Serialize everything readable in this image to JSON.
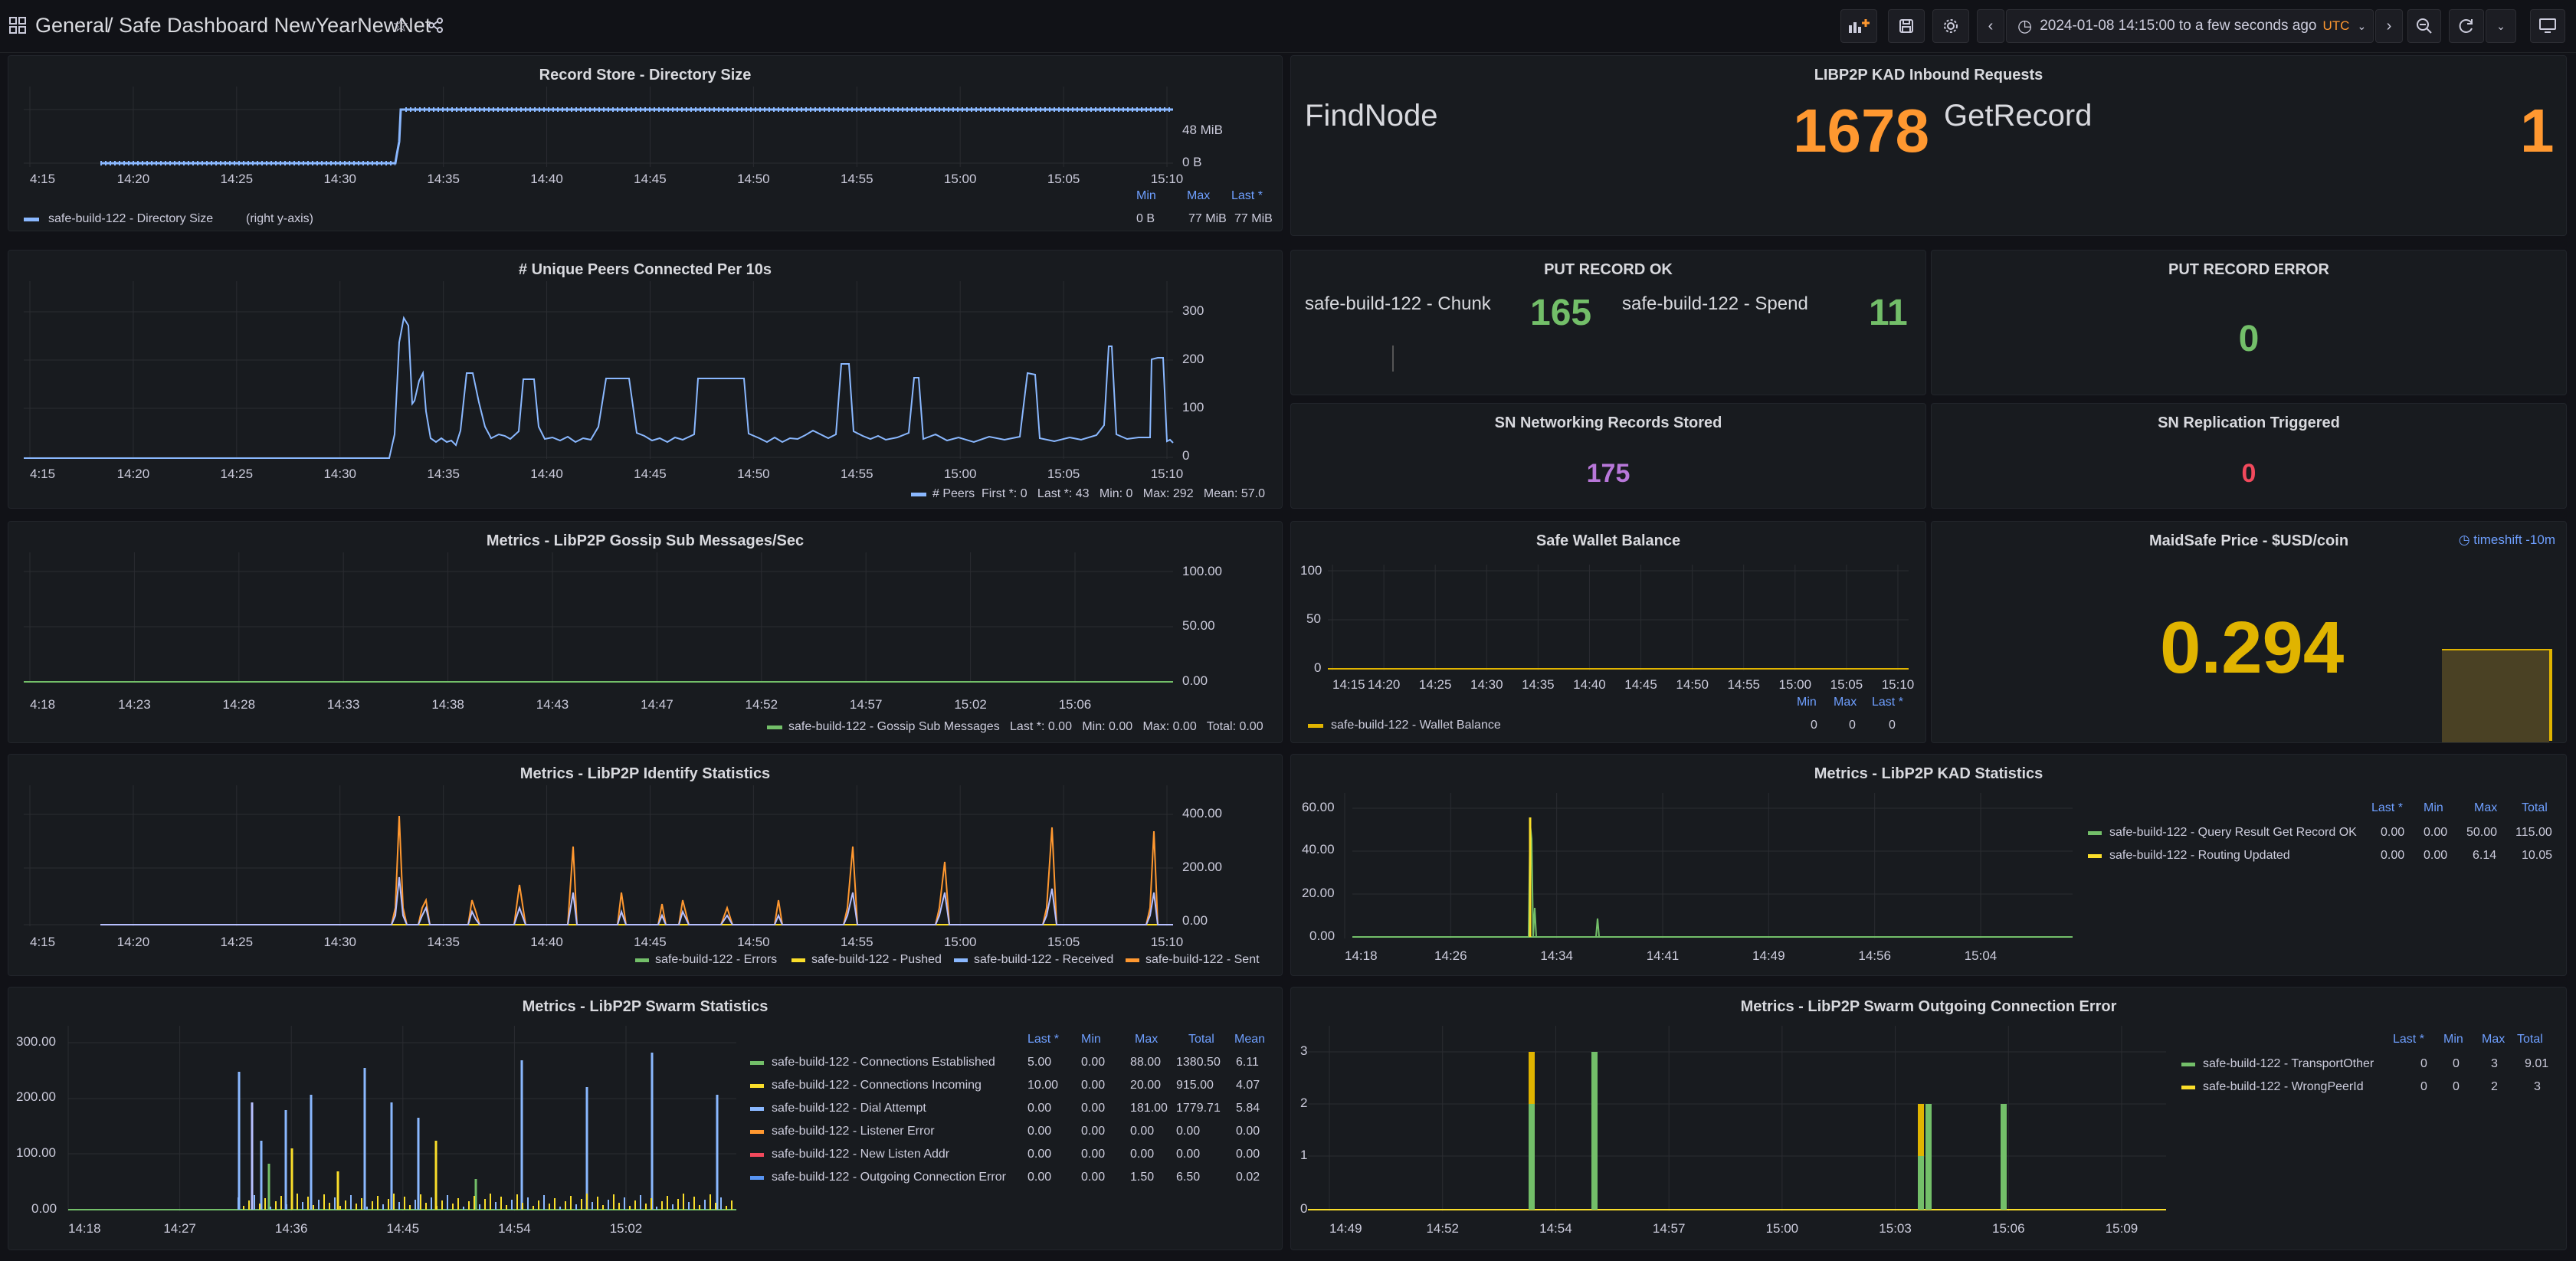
{
  "topbar": {
    "breadcrumb_folder": "General",
    "breadcrumb_sep": "/",
    "dashboard_title": "Safe Dashboard NewYearNewNet",
    "time_range": "2024-01-08 14:15:00 to a few seconds ago",
    "timezone": "UTC"
  },
  "record_store": {
    "title": "Record Store - Directory Size",
    "x_ticks": [
      "4:15",
      "14:20",
      "14:25",
      "14:30",
      "14:35",
      "14:40",
      "14:45",
      "14:50",
      "14:55",
      "15:00",
      "15:05",
      "15:10"
    ],
    "y_ticks": [
      "48 MiB",
      "0 B"
    ],
    "legend": {
      "name": "safe-build-122 - Directory Size",
      "suffix": "(right y-axis)",
      "min": "0 B",
      "max": "77 MiB",
      "last": "77 MiB"
    },
    "headers": {
      "min": "Min",
      "max": "Max",
      "last": "Last *"
    }
  },
  "kad_inbound": {
    "title": "LIBP2P KAD Inbound Requests",
    "items": [
      {
        "name": "FindNode",
        "value": "1678"
      },
      {
        "name": "GetRecord",
        "value": "1"
      }
    ]
  },
  "unique_peers": {
    "title": "# Unique Peers Connected Per 10s",
    "x_ticks": [
      "4:15",
      "14:20",
      "14:25",
      "14:30",
      "14:35",
      "14:40",
      "14:45",
      "14:50",
      "14:55",
      "15:00",
      "15:05",
      "15:10"
    ],
    "y_ticks": [
      "300",
      "200",
      "100",
      "0"
    ],
    "legend": "# Peers  First *: 0   Last *: 43   Min: 0   Max: 292   Mean: 57.0"
  },
  "put_ok": {
    "title": "PUT RECORD OK",
    "items": [
      {
        "name": "safe-build-122 - Chunk",
        "value": "165"
      },
      {
        "name": "safe-build-122 - Spend",
        "value": "11"
      }
    ]
  },
  "put_error": {
    "title": "PUT RECORD ERROR",
    "value": "0"
  },
  "sn_records": {
    "title": "SN Networking Records Stored",
    "value": "175"
  },
  "sn_replication": {
    "title": "SN Replication Triggered",
    "value": "0"
  },
  "gossip": {
    "title": "Metrics - LibP2P Gossip Sub Messages/Sec",
    "x_ticks": [
      "4:18",
      "14:23",
      "14:28",
      "14:33",
      "14:38",
      "14:43",
      "14:47",
      "14:52",
      "14:57",
      "15:02",
      "15:06"
    ],
    "y_ticks": [
      "100.00",
      "50.00",
      "0.00"
    ],
    "legend": "safe-build-122 - Gossip Sub Messages   Last *: 0.00   Min: 0.00   Max: 0.00   Total: 0.00"
  },
  "wallet": {
    "title": "Safe Wallet Balance",
    "x_ticks": [
      "14:15",
      "14:20",
      "14:25",
      "14:30",
      "14:35",
      "14:40",
      "14:45",
      "14:50",
      "14:55",
      "15:00",
      "15:05",
      "15:10"
    ],
    "y_ticks": [
      "100",
      "50",
      "0"
    ],
    "legend": {
      "name": "safe-build-122 - Wallet Balance",
      "min": "0",
      "max": "0",
      "last": "0"
    },
    "headers": {
      "min": "Min",
      "max": "Max",
      "last": "Last *"
    }
  },
  "maidsafe": {
    "title": "MaidSafe Price - $USD/coin",
    "timeshift": "timeshift -10m",
    "value": "0.294"
  },
  "identify": {
    "title": "Metrics - LibP2P Identify Statistics",
    "x_ticks": [
      "4:15",
      "14:20",
      "14:25",
      "14:30",
      "14:35",
      "14:40",
      "14:45",
      "14:50",
      "14:55",
      "15:00",
      "15:05",
      "15:10"
    ],
    "y_ticks": [
      "400.00",
      "200.00",
      "0.00"
    ],
    "legend": [
      "safe-build-122 - Errors",
      "safe-build-122 - Pushed",
      "safe-build-122 - Received",
      "safe-build-122 - Sent"
    ]
  },
  "kad_stats": {
    "title": "Metrics - LibP2P KAD Statistics",
    "x_ticks": [
      "14:18",
      "14:26",
      "14:34",
      "14:41",
      "14:49",
      "14:56",
      "15:04"
    ],
    "y_ticks": [
      "60.00",
      "40.00",
      "20.00",
      "0.00"
    ],
    "headers": [
      "Last *",
      "Min",
      "Max",
      "Total"
    ],
    "rows": [
      {
        "name": "safe-build-122 - Query Result Get Record OK",
        "vals": [
          "0.00",
          "0.00",
          "50.00",
          "115.00"
        ]
      },
      {
        "name": "safe-build-122 - Routing Updated",
        "vals": [
          "0.00",
          "0.00",
          "6.14",
          "10.05"
        ]
      }
    ]
  },
  "swarm": {
    "title": "Metrics - LibP2P Swarm Statistics",
    "x_ticks": [
      "14:18",
      "14:27",
      "14:36",
      "14:45",
      "14:54",
      "15:02"
    ],
    "y_ticks": [
      "300.00",
      "200.00",
      "100.00",
      "0.00"
    ],
    "headers": [
      "Last *",
      "Min",
      "Max",
      "Total",
      "Mean"
    ],
    "rows": [
      {
        "name": "safe-build-122 - Connections Established",
        "vals": [
          "5.00",
          "0.00",
          "88.00",
          "1380.50",
          "6.11"
        ]
      },
      {
        "name": "safe-build-122 - Connections Incoming",
        "vals": [
          "10.00",
          "0.00",
          "20.00",
          "915.00",
          "4.07"
        ]
      },
      {
        "name": "safe-build-122 - Dial Attempt",
        "vals": [
          "0.00",
          "0.00",
          "181.00",
          "1779.71",
          "5.84"
        ]
      },
      {
        "name": "safe-build-122 - Listener Error",
        "vals": [
          "0.00",
          "0.00",
          "0.00",
          "0.00",
          "0.00"
        ]
      },
      {
        "name": "safe-build-122 - New Listen Addr",
        "vals": [
          "0.00",
          "0.00",
          "0.00",
          "0.00",
          "0.00"
        ]
      },
      {
        "name": "safe-build-122 - Outgoing Connection Error",
        "vals": [
          "0.00",
          "0.00",
          "1.50",
          "6.50",
          "0.02"
        ]
      }
    ]
  },
  "swarm_err": {
    "title": "Metrics - LibP2P Swarm Outgoing Connection Error",
    "x_ticks": [
      "14:49",
      "14:52",
      "14:54",
      "14:57",
      "15:00",
      "15:03",
      "15:06",
      "15:09"
    ],
    "y_ticks": [
      "3",
      "2",
      "1",
      "0"
    ],
    "headers": [
      "Last *",
      "Min",
      "Max",
      "Total"
    ],
    "rows": [
      {
        "name": "safe-build-122 - TransportOther",
        "vals": [
          "0",
          "0",
          "3",
          "9.01"
        ]
      },
      {
        "name": "safe-build-122 - WrongPeerId",
        "vals": [
          "0",
          "0",
          "2",
          "3"
        ]
      }
    ]
  },
  "colors": {
    "green": "#73bf69",
    "yellow": "#fade2a",
    "blue": "#8ab8ff",
    "orange": "#ff9830",
    "red": "#f2495c",
    "purple": "#b877d9",
    "gold": "#e0b400"
  }
}
